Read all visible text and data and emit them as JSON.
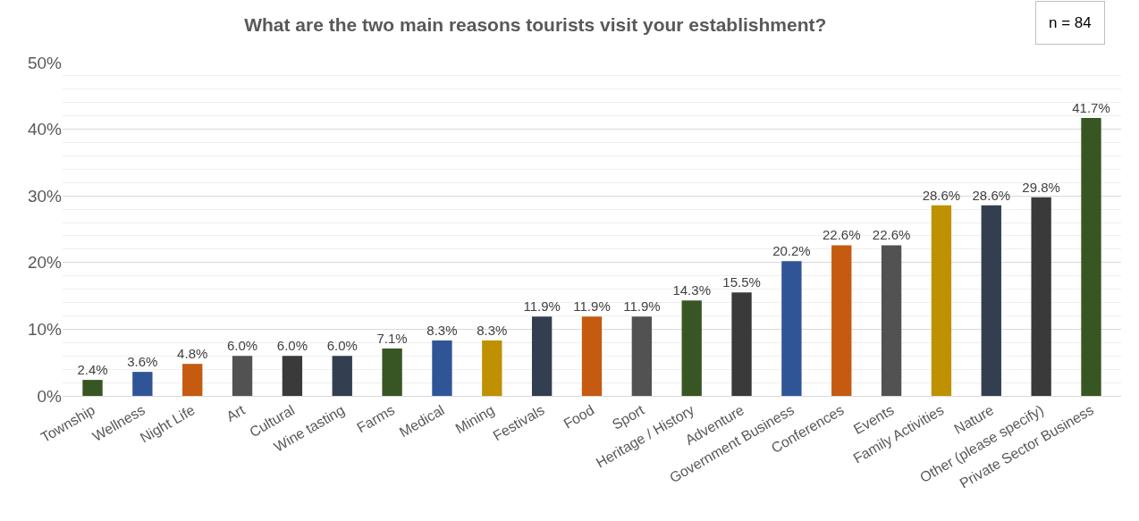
{
  "chart_data": {
    "type": "bar",
    "title": "What are the two main reasons tourists visit your establishment?",
    "categories": [
      "Township",
      "Wellness",
      "Night Life",
      "Art",
      "Cultural",
      "Wine tasting",
      "Farms",
      "Medical",
      "Mining",
      "Festivals",
      "Food",
      "Sport",
      "Heritage / History",
      "Adventure",
      "Government Business",
      "Conferences",
      "Events",
      "Family Activities",
      "Nature",
      "Other (please specify)",
      "Private Sector Business"
    ],
    "values": [
      2.4,
      3.6,
      4.8,
      6.0,
      6.0,
      6.0,
      7.1,
      8.3,
      8.3,
      11.9,
      11.9,
      11.9,
      14.3,
      15.5,
      20.2,
      22.6,
      22.6,
      28.6,
      28.6,
      29.8,
      41.7
    ],
    "value_labels": [
      "2.4%",
      "3.6%",
      "4.8%",
      "6.0%",
      "6.0%",
      "6.0%",
      "7.1%",
      "8.3%",
      "8.3%",
      "11.9%",
      "11.9%",
      "11.9%",
      "14.3%",
      "15.5%",
      "20.2%",
      "22.6%",
      "22.6%",
      "28.6%",
      "28.6%",
      "29.8%",
      "41.7%"
    ],
    "colors": [
      "#375623",
      "#2f5597",
      "#c55a11",
      "#525252",
      "#3a3a3a",
      "#333f50",
      "#375623",
      "#2f5597",
      "#bf9000",
      "#333f50",
      "#c55a11",
      "#525252",
      "#375623",
      "#3a3a3a",
      "#2f5597",
      "#c55a11",
      "#525252",
      "#bf9000",
      "#333f50",
      "#3a3a3a",
      "#375623"
    ],
    "ylim": [
      0,
      50
    ],
    "yticks": [
      {
        "value": 0,
        "label": "0%"
      },
      {
        "value": 10,
        "label": "10%"
      },
      {
        "value": 20,
        "label": "20%"
      },
      {
        "value": 30,
        "label": "30%"
      },
      {
        "value": 40,
        "label": "40%"
      },
      {
        "value": 50,
        "label": "50%"
      }
    ],
    "grid": "y",
    "annotations": [
      "n = 84"
    ]
  }
}
